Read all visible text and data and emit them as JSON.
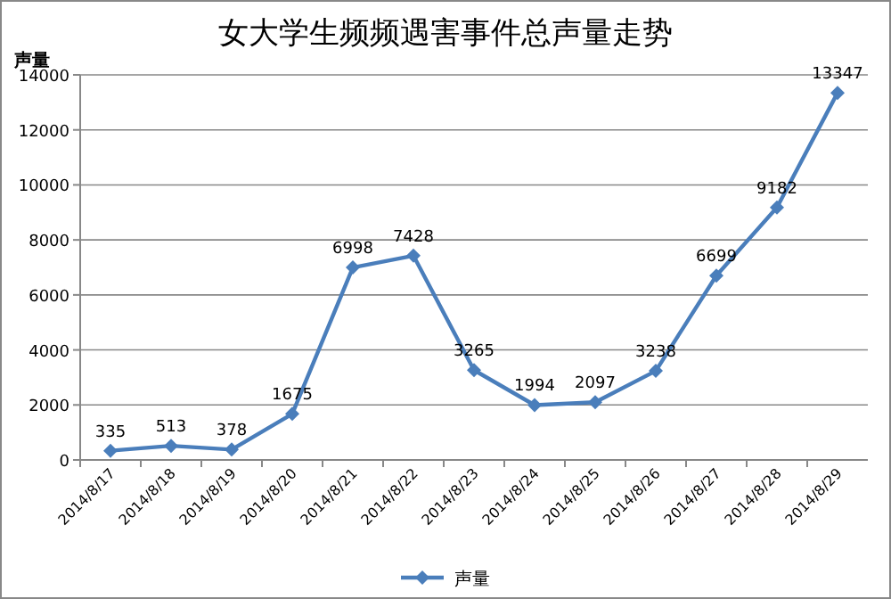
{
  "chart_data": {
    "type": "line",
    "title": "女大学生频频遇害事件总声量走势",
    "ylabel": "声量",
    "categories": [
      "2014/8/17",
      "2014/8/18",
      "2014/8/19",
      "2014/8/20",
      "2014/8/21",
      "2014/8/22",
      "2014/8/23",
      "2014/8/24",
      "2014/8/25",
      "2014/8/26",
      "2014/8/27",
      "2014/8/28",
      "2014/8/29"
    ],
    "series": [
      {
        "name": "声量",
        "color": "#4a7ebb",
        "values": [
          335,
          513,
          378,
          1675,
          6998,
          7428,
          3265,
          1994,
          2097,
          3238,
          6699,
          9182,
          13347
        ]
      }
    ],
    "ylim": [
      0,
      14000
    ],
    "yticks": [
      0,
      2000,
      4000,
      6000,
      8000,
      10000,
      12000,
      14000
    ],
    "grid": "y",
    "legend": "bottom",
    "marker": "diamond",
    "line_style": "solid",
    "data_labels": true
  }
}
